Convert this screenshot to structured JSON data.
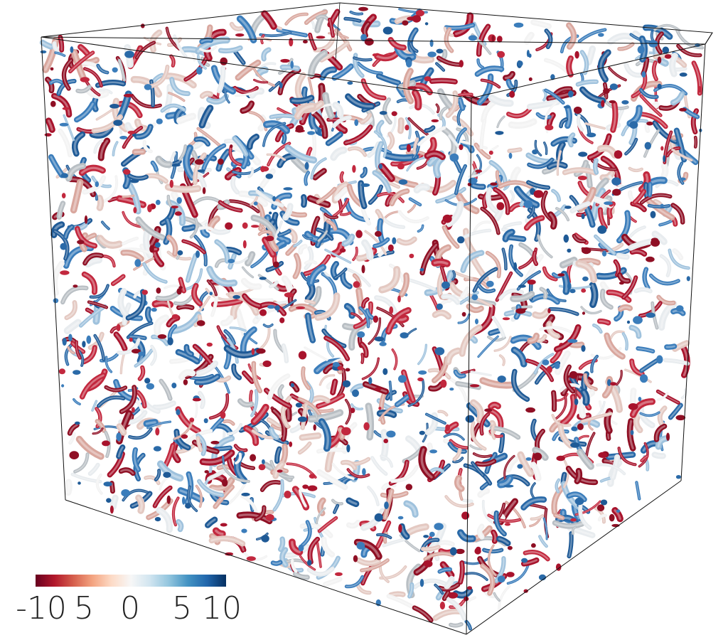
{
  "figure": {
    "colorbar": {
      "ticks": [
        "-10",
        "5",
        "0",
        "5",
        "10"
      ],
      "colors": [
        "#67001f",
        "#b2182b",
        "#d6604d",
        "#f4a582",
        "#fddbc7",
        "#f7f7f7",
        "#d1e5f0",
        "#92c5de",
        "#4393c3",
        "#2166ac",
        "#053061"
      ]
    },
    "palette": {
      "red": "#a8132c",
      "blue": "#2a6aa8",
      "white": "#e8ecef",
      "gray": "#b9bfc4",
      "outline": "#111111"
    }
  }
}
